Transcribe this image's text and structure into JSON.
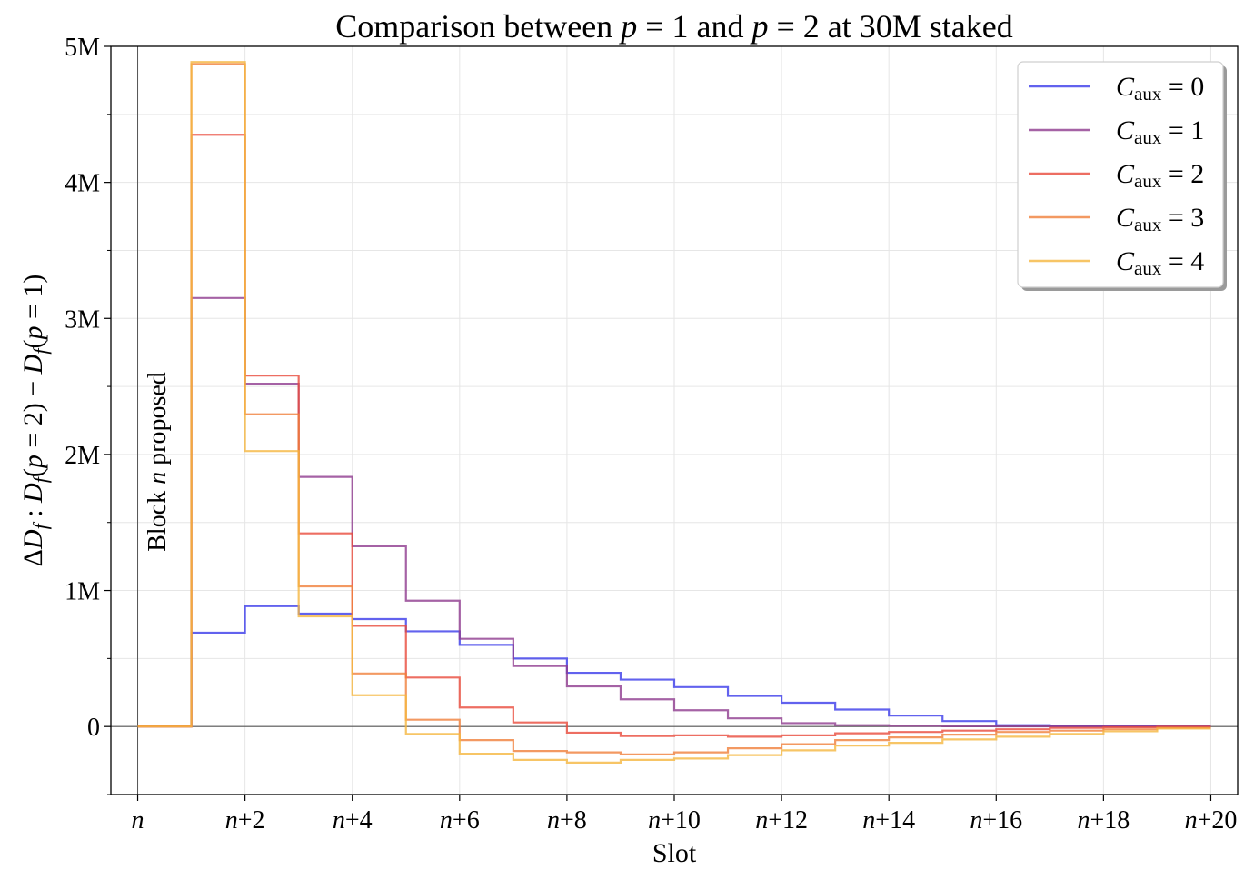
{
  "chart_data": {
    "type": "line",
    "title": "Comparison between p = 1 and p = 2 at 30M staked",
    "title_parts": [
      "Comparison between ",
      "p",
      " = 1 and ",
      "p",
      " = 2 at 30M staked"
    ],
    "xlabel": "Slot",
    "ylabel": "ΔDf : Df(p = 2) − Df(p = 1)",
    "ylabel_parts": [
      "Δ",
      "D",
      "f",
      " : ",
      "D",
      "f",
      "(",
      "p",
      " = 2) − ",
      "D",
      "f",
      "(",
      "p",
      " = 1)"
    ],
    "annotation": "Block n proposed",
    "annotation_parts": [
      "Block ",
      "n",
      " proposed"
    ],
    "grid": true,
    "legend_position": "top-right",
    "xlim": [
      -0.5,
      20.5
    ],
    "ylim": [
      -500000,
      5000000
    ],
    "x_ticks": [
      0,
      2,
      4,
      6,
      8,
      10,
      12,
      14,
      16,
      18,
      20
    ],
    "x_tick_labels": [
      "n",
      "n+2",
      "n+4",
      "n+6",
      "n+8",
      "n+10",
      "n+12",
      "n+14",
      "n+16",
      "n+18",
      "n+20"
    ],
    "y_ticks": [
      0,
      1000000,
      2000000,
      3000000,
      4000000,
      5000000
    ],
    "y_tick_labels": [
      "0",
      "1M",
      "2M",
      "3M",
      "4M",
      "5M"
    ],
    "x_edges": [
      0,
      1,
      2,
      3,
      4,
      5,
      6,
      7,
      8,
      9,
      10,
      11,
      12,
      13,
      14,
      15,
      16,
      17,
      18,
      19,
      20
    ],
    "series": [
      {
        "name": "Caux = 0",
        "sub": "aux",
        "num": "0",
        "color": "#3b3bea",
        "values": [
          0,
          690000,
          885000,
          830000,
          790000,
          700000,
          600000,
          500000,
          395000,
          345000,
          290000,
          225000,
          175000,
          125000,
          80000,
          40000,
          10000,
          5000,
          3000,
          1000
        ]
      },
      {
        "name": "Caux = 1",
        "sub": "aux",
        "num": "1",
        "color": "#8e3b8e",
        "values": [
          0,
          3150000,
          2520000,
          1835000,
          1325000,
          925000,
          645000,
          445000,
          295000,
          200000,
          120000,
          60000,
          25000,
          10000,
          5000,
          2000,
          1000,
          500,
          0,
          0
        ]
      },
      {
        "name": "Caux = 2",
        "sub": "aux",
        "num": "2",
        "color": "#e84a3b",
        "values": [
          0,
          4350000,
          2580000,
          1420000,
          740000,
          360000,
          140000,
          30000,
          -45000,
          -70000,
          -65000,
          -75000,
          -65000,
          -50000,
          -40000,
          -30000,
          -20000,
          -10000,
          -5000,
          -2000
        ]
      },
      {
        "name": "Caux = 3",
        "sub": "aux",
        "num": "3",
        "color": "#f0803b",
        "values": [
          0,
          4870000,
          2295000,
          1030000,
          390000,
          50000,
          -100000,
          -180000,
          -190000,
          -205000,
          -190000,
          -160000,
          -130000,
          -100000,
          -80000,
          -60000,
          -40000,
          -30000,
          -20000,
          -10000
        ]
      },
      {
        "name": "Caux = 4",
        "sub": "aux",
        "num": "4",
        "color": "#f5b640",
        "values": [
          0,
          4885000,
          2025000,
          810000,
          230000,
          -55000,
          -200000,
          -245000,
          -265000,
          -245000,
          -235000,
          -210000,
          -175000,
          -140000,
          -120000,
          -95000,
          -75000,
          -55000,
          -35000,
          -15000
        ]
      }
    ]
  }
}
